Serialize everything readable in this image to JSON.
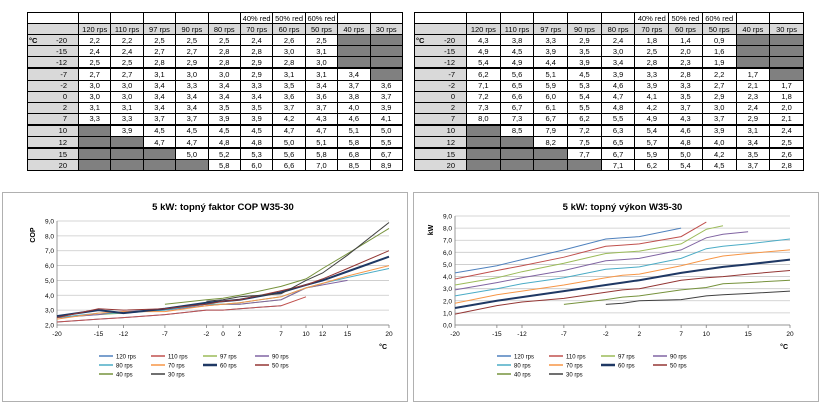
{
  "header_top": [
    "",
    "",
    "",
    "",
    "",
    "40% red",
    "50% red",
    "60% red",
    "",
    ""
  ],
  "header_cols": [
    "120 rps",
    "110 rps",
    "97 rps",
    "90 rps",
    "80 rps",
    "70 rps",
    "60 rps",
    "50 rps",
    "40 rps",
    "30 rps"
  ],
  "unit_label": "°C",
  "row_labels": [
    "-20",
    "-15",
    "-12",
    "-7",
    "-2",
    "0",
    "2",
    "7",
    "10",
    "12",
    "15",
    "20"
  ],
  "table_cop": [
    [
      "2,2",
      "2,2",
      "2,5",
      "2,5",
      "2,5",
      "2,4",
      "2,6",
      "2,5",
      null,
      null
    ],
    [
      "2,4",
      "2,4",
      "2,7",
      "2,7",
      "2,8",
      "2,8",
      "3,0",
      "3,1",
      null,
      null
    ],
    [
      "2,5",
      "2,5",
      "2,8",
      "2,9",
      "2,8",
      "2,9",
      "2,8",
      "3,0",
      null,
      null
    ],
    [
      "2,7",
      "2,7",
      "3,1",
      "3,0",
      "3,0",
      "2,9",
      "3,1",
      "3,1",
      "3,4",
      null
    ],
    [
      "3,0",
      "3,0",
      "3,4",
      "3,3",
      "3,4",
      "3,3",
      "3,5",
      "3,4",
      "3,7",
      "3,6"
    ],
    [
      "3,0",
      "3,0",
      "3,4",
      "3,4",
      "3,4",
      "3,4",
      "3,6",
      "3,6",
      "3,8",
      "3,7"
    ],
    [
      "3,1",
      "3,1",
      "3,4",
      "3,4",
      "3,5",
      "3,5",
      "3,7",
      "3,7",
      "4,0",
      "3,9"
    ],
    [
      "3,3",
      "3,3",
      "3,7",
      "3,7",
      "3,9",
      "3,9",
      "4,2",
      "4,3",
      "4,6",
      "4,1"
    ],
    [
      null,
      "3,9",
      "4,5",
      "4,5",
      "4,5",
      "4,5",
      "4,7",
      "4,7",
      "5,1",
      "5,0"
    ],
    [
      null,
      null,
      "4,7",
      "4,7",
      "4,8",
      "4,8",
      "5,0",
      "5,1",
      "5,8",
      "5,5"
    ],
    [
      null,
      null,
      null,
      "5,0",
      "5,2",
      "5,3",
      "5,6",
      "5,8",
      "6,8",
      "6,7"
    ],
    [
      null,
      null,
      null,
      null,
      "5,8",
      "6,0",
      "6,6",
      "7,0",
      "8,5",
      "8,9"
    ]
  ],
  "table_kw": [
    [
      "4,3",
      "3,8",
      "3,3",
      "2,9",
      "2,4",
      "1,8",
      "1,4",
      "0,9",
      null,
      null
    ],
    [
      "4,9",
      "4,5",
      "3,9",
      "3,5",
      "3,0",
      "2,5",
      "2,0",
      "1,6",
      null,
      null
    ],
    [
      "5,4",
      "4,9",
      "4,4",
      "3,9",
      "3,4",
      "2,8",
      "2,3",
      "1,9",
      null,
      null
    ],
    [
      "6,2",
      "5,6",
      "5,1",
      "4,5",
      "3,9",
      "3,3",
      "2,8",
      "2,2",
      "1,7",
      null
    ],
    [
      "7,1",
      "6,5",
      "5,9",
      "5,3",
      "4,6",
      "3,9",
      "3,3",
      "2,7",
      "2,1",
      "1,7"
    ],
    [
      "7,2",
      "6,6",
      "6,0",
      "5,4",
      "4,7",
      "4,1",
      "3,5",
      "2,9",
      "2,3",
      "1,8"
    ],
    [
      "7,3",
      "6,7",
      "6,1",
      "5,5",
      "4,8",
      "4,2",
      "3,7",
      "3,0",
      "2,4",
      "2,0"
    ],
    [
      "8,0",
      "7,3",
      "6,7",
      "6,2",
      "5,5",
      "4,9",
      "4,3",
      "3,7",
      "2,9",
      "2,1"
    ],
    [
      null,
      "8,5",
      "7,9",
      "7,2",
      "6,3",
      "5,4",
      "4,6",
      "3,9",
      "3,1",
      "2,4"
    ],
    [
      null,
      null,
      "8,2",
      "7,5",
      "6,5",
      "5,7",
      "4,8",
      "4,0",
      "3,4",
      "2,5"
    ],
    [
      null,
      null,
      null,
      "7,7",
      "6,7",
      "5,9",
      "5,0",
      "4,2",
      "3,5",
      "2,6"
    ],
    [
      null,
      null,
      null,
      null,
      "7,1",
      "6,2",
      "5,4",
      "4,5",
      "3,7",
      "2,8"
    ]
  ],
  "chart_data": [
    {
      "type": "line",
      "title": "5 kW: topný faktor COP W35-30",
      "ylabel": "COP",
      "xlabel": "°C",
      "x": [
        -20,
        -15,
        -12,
        -7,
        -2,
        0,
        2,
        7,
        10,
        12,
        15,
        20
      ],
      "xticks": [
        -20,
        -15,
        -12,
        -7,
        -2,
        0,
        2,
        7,
        10,
        12,
        15,
        20
      ],
      "ylim": [
        2.0,
        9.0
      ],
      "yticks": [
        "2,0",
        "3,0",
        "4,0",
        "5,0",
        "6,0",
        "7,0",
        "8,0",
        "9,0"
      ],
      "grid": true,
      "legend_position": "bottom",
      "series": [
        {
          "name": "120 rps",
          "color": "#4f81bd",
          "width": 1,
          "values": [
            2.2,
            2.4,
            2.5,
            2.7,
            3.0,
            3.0,
            3.1,
            3.3,
            null,
            null,
            null,
            null
          ]
        },
        {
          "name": "110 rps",
          "color": "#c0504d",
          "width": 1,
          "values": [
            2.2,
            2.4,
            2.5,
            2.7,
            3.0,
            3.0,
            3.1,
            3.3,
            3.9,
            null,
            null,
            null
          ]
        },
        {
          "name": "97 rps",
          "color": "#9bbb59",
          "width": 1,
          "values": [
            2.5,
            2.7,
            2.8,
            3.1,
            3.4,
            3.4,
            3.4,
            3.7,
            4.5,
            4.7,
            null,
            null
          ]
        },
        {
          "name": "90 rps",
          "color": "#8064a2",
          "width": 1,
          "values": [
            2.5,
            2.7,
            2.9,
            3.0,
            3.3,
            3.4,
            3.4,
            3.7,
            4.5,
            4.7,
            5.0,
            null
          ]
        },
        {
          "name": "80 rps",
          "color": "#4bacc6",
          "width": 1,
          "values": [
            2.5,
            2.8,
            2.8,
            3.0,
            3.4,
            3.4,
            3.5,
            3.9,
            4.5,
            4.8,
            5.2,
            5.8
          ]
        },
        {
          "name": "70 rps",
          "color": "#f79646",
          "width": 1,
          "values": [
            2.4,
            2.8,
            2.9,
            2.9,
            3.3,
            3.4,
            3.5,
            3.9,
            4.5,
            4.8,
            5.3,
            6.0
          ]
        },
        {
          "name": "60 rps",
          "color": "#1f3864",
          "width": 2,
          "values": [
            2.6,
            3.0,
            2.8,
            3.1,
            3.5,
            3.6,
            3.7,
            4.2,
            4.7,
            5.0,
            5.6,
            6.6
          ]
        },
        {
          "name": "50 rps",
          "color": "#943634",
          "width": 1,
          "values": [
            2.5,
            3.1,
            3.0,
            3.1,
            3.4,
            3.6,
            3.7,
            4.3,
            4.7,
            5.1,
            5.8,
            7.0
          ]
        },
        {
          "name": "40 rps",
          "color": "#76923c",
          "width": 1,
          "values": [
            null,
            null,
            null,
            3.4,
            3.7,
            3.8,
            4.0,
            4.6,
            5.1,
            5.8,
            6.8,
            8.5
          ]
        },
        {
          "name": "30 rps",
          "color": "#404040",
          "width": 1,
          "values": [
            null,
            null,
            null,
            null,
            3.6,
            3.7,
            3.9,
            4.1,
            5.0,
            5.5,
            6.7,
            8.9
          ]
        }
      ]
    },
    {
      "type": "line",
      "title": "5 kW: topný výkon W35-30",
      "ylabel": "kW",
      "xlabel": "°C",
      "x": [
        -20,
        -15,
        -12,
        -7,
        -2,
        0,
        2,
        7,
        10,
        12,
        15,
        20
      ],
      "xticks": [
        -20,
        -15,
        -12,
        -7,
        -2,
        2,
        7,
        10,
        15,
        20
      ],
      "ylim": [
        0.0,
        9.0
      ],
      "yticks": [
        "0,0",
        "1,0",
        "2,0",
        "3,0",
        "4,0",
        "5,0",
        "6,0",
        "7,0",
        "8,0",
        "9,0"
      ],
      "grid": true,
      "legend_position": "bottom",
      "series": [
        {
          "name": "120 rps",
          "color": "#4f81bd",
          "width": 1,
          "values": [
            4.3,
            4.9,
            5.4,
            6.2,
            7.1,
            7.2,
            7.3,
            8.0,
            null,
            null,
            null,
            null
          ]
        },
        {
          "name": "110 rps",
          "color": "#c0504d",
          "width": 1,
          "values": [
            3.8,
            4.5,
            4.9,
            5.6,
            6.5,
            6.6,
            6.7,
            7.3,
            8.5,
            null,
            null,
            null
          ]
        },
        {
          "name": "97 rps",
          "color": "#9bbb59",
          "width": 1,
          "values": [
            3.3,
            3.9,
            4.4,
            5.1,
            5.9,
            6.0,
            6.1,
            6.7,
            7.9,
            8.2,
            null,
            null
          ]
        },
        {
          "name": "90 rps",
          "color": "#8064a2",
          "width": 1,
          "values": [
            2.9,
            3.5,
            3.9,
            4.5,
            5.3,
            5.4,
            5.5,
            6.2,
            7.2,
            7.5,
            7.7,
            null
          ]
        },
        {
          "name": "80 rps",
          "color": "#4bacc6",
          "width": 1,
          "values": [
            2.4,
            3.0,
            3.4,
            3.9,
            4.6,
            4.7,
            4.8,
            5.5,
            6.3,
            6.5,
            6.7,
            7.1
          ]
        },
        {
          "name": "70 rps",
          "color": "#f79646",
          "width": 1,
          "values": [
            1.8,
            2.5,
            2.8,
            3.3,
            3.9,
            4.1,
            4.2,
            4.9,
            5.4,
            5.7,
            5.9,
            6.2
          ]
        },
        {
          "name": "60 rps",
          "color": "#1f3864",
          "width": 2,
          "values": [
            1.4,
            2.0,
            2.3,
            2.8,
            3.3,
            3.5,
            3.7,
            4.3,
            4.6,
            4.8,
            5.0,
            5.4
          ]
        },
        {
          "name": "50 rps",
          "color": "#943634",
          "width": 1,
          "values": [
            0.9,
            1.6,
            1.9,
            2.2,
            2.7,
            2.9,
            3.0,
            3.7,
            3.9,
            4.0,
            4.2,
            4.5
          ]
        },
        {
          "name": "40 rps",
          "color": "#76923c",
          "width": 1,
          "values": [
            null,
            null,
            null,
            1.7,
            2.1,
            2.3,
            2.4,
            2.9,
            3.1,
            3.4,
            3.5,
            3.7
          ]
        },
        {
          "name": "30 rps",
          "color": "#404040",
          "width": 1,
          "values": [
            null,
            null,
            null,
            null,
            1.7,
            1.8,
            2.0,
            2.1,
            2.4,
            2.5,
            2.6,
            2.8
          ]
        }
      ]
    }
  ]
}
